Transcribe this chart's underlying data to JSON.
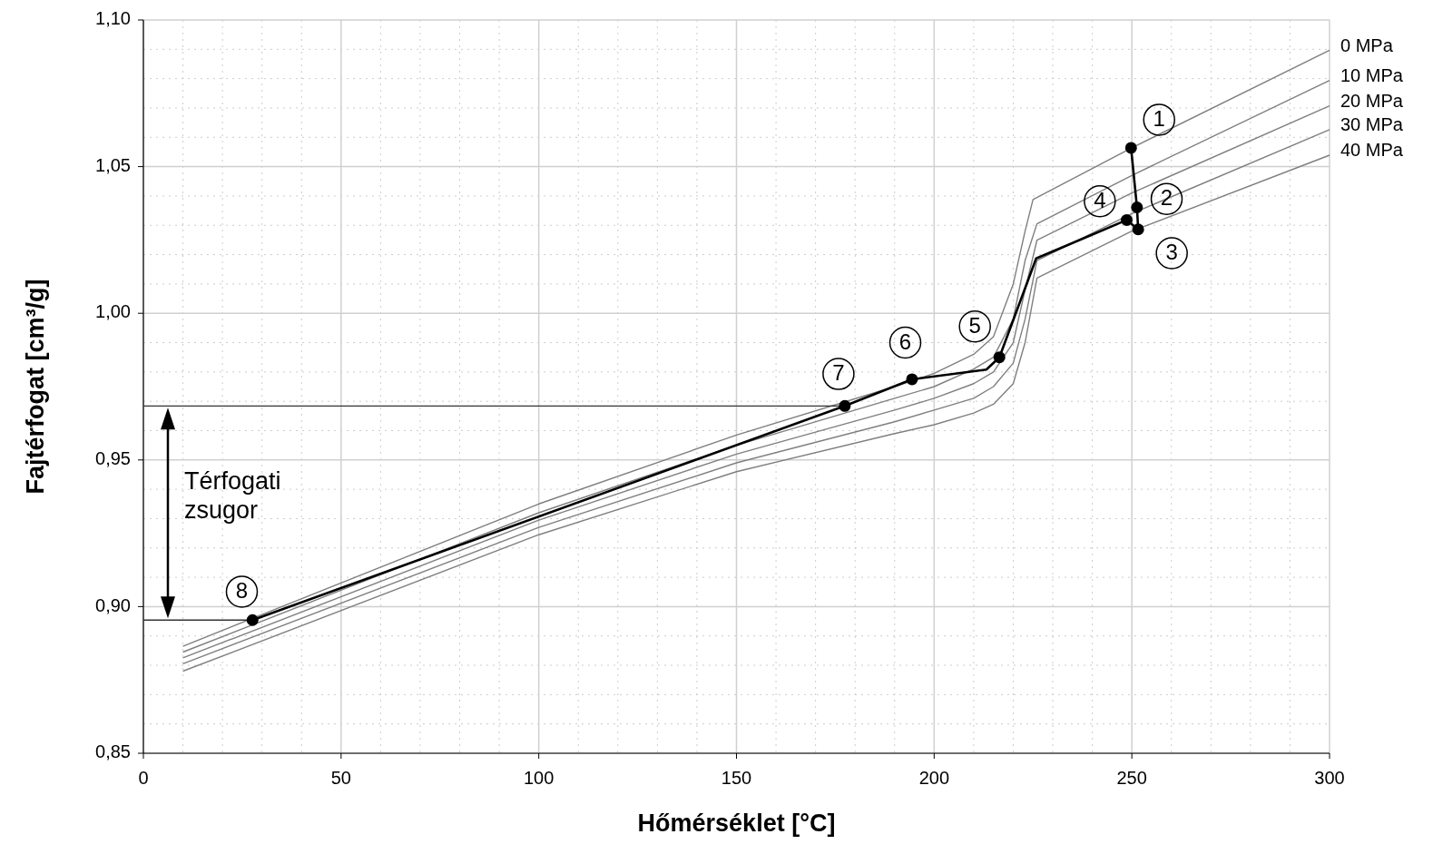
{
  "chart_data": {
    "type": "line",
    "xlabel": "Hőmérséklet [°C]",
    "ylabel": "Fajtérfogat [cm³/g]",
    "xlim": [
      0,
      300
    ],
    "xticks": [
      0,
      50,
      100,
      150,
      200,
      250,
      300
    ],
    "ylim": [
      0.85,
      1.1
    ],
    "yticks": [
      {
        "value": 0.85,
        "label": "0,85"
      },
      {
        "value": 0.9,
        "label": "0,90"
      },
      {
        "value": 0.95,
        "label": "0,95"
      },
      {
        "value": 1.0,
        "label": "1,00"
      },
      {
        "value": 1.05,
        "label": "1,05"
      },
      {
        "value": 1.1,
        "label": "1,10"
      }
    ],
    "grid": true,
    "line_style": "solid",
    "series": [
      {
        "name": "0 MPa",
        "color": "#7f7f7f",
        "x": [
          10,
          100,
          150,
          190,
          200,
          210,
          215,
          220,
          223,
          225,
          250,
          300
        ],
        "values": [
          0.8865,
          0.935,
          0.9585,
          0.975,
          0.9795,
          0.986,
          0.992,
          1.01,
          1.028,
          1.0388,
          1.0564,
          1.0897
        ]
      },
      {
        "name": "10 MPa",
        "color": "#7f7f7f",
        "x": [
          10,
          100,
          150,
          190,
          200,
          210,
          215,
          220,
          223,
          226,
          250,
          300
        ],
        "values": [
          0.8845,
          0.932,
          0.955,
          0.971,
          0.975,
          0.981,
          0.985,
          0.998,
          1.018,
          1.0305,
          1.047,
          1.0794
        ]
      },
      {
        "name": "20 MPa",
        "color": "#7f7f7f",
        "x": [
          10,
          100,
          150,
          190,
          200,
          210,
          215,
          220,
          223,
          226,
          250,
          300
        ],
        "values": [
          0.8825,
          0.9295,
          0.952,
          0.967,
          0.971,
          0.976,
          0.98,
          0.99,
          1.008,
          1.0249,
          1.041,
          1.0707
        ]
      },
      {
        "name": "30 MPa",
        "color": "#7f7f7f",
        "x": [
          10,
          100,
          150,
          190,
          200,
          210,
          215,
          220,
          223,
          226,
          250,
          300
        ],
        "values": [
          0.8805,
          0.927,
          0.949,
          0.963,
          0.967,
          0.971,
          0.975,
          0.983,
          0.998,
          1.018,
          1.034,
          1.0626
        ]
      },
      {
        "name": "40 MPa",
        "color": "#7f7f7f",
        "x": [
          10,
          100,
          150,
          190,
          200,
          210,
          215,
          220,
          223,
          226,
          250,
          300
        ],
        "values": [
          0.878,
          0.9245,
          0.946,
          0.959,
          0.962,
          0.966,
          0.969,
          0.976,
          0.99,
          1.012,
          1.028,
          1.0539
        ]
      },
      {
        "color": "#000000",
        "x": [
          249.8,
          251.3,
          251.6,
          248.7,
          225.8,
          216.5,
          213.2,
          194.4,
          177.4,
          27.6
        ],
        "values": [
          1.0564,
          1.0361,
          1.0286,
          1.0318,
          1.0187,
          0.985,
          0.9808,
          0.9775,
          0.9684,
          0.8954
        ]
      },
      {
        "color": "#333333",
        "x": [
          0,
          177.4
        ],
        "values": [
          0.9684,
          0.9684
        ]
      },
      {
        "color": "#333333",
        "x": [
          0,
          27.6
        ],
        "values": [
          0.8954,
          0.8954
        ]
      },
      {
        "type": "scatter",
        "marker": "circle",
        "color": "#000000",
        "x": [
          249.8,
          251.3,
          251.6,
          248.7,
          216.5,
          194.4,
          177.4,
          27.6
        ],
        "values": [
          1.0564,
          1.0361,
          1.0286,
          1.0318,
          0.985,
          0.9775,
          0.9684,
          0.8954
        ]
      }
    ],
    "annotations": [
      {
        "text": "1",
        "x": 256.9,
        "y": 1.066
      },
      {
        "text": "2",
        "x": 258.8,
        "y": 1.039
      },
      {
        "text": "3",
        "x": 260.1,
        "y": 1.0205
      },
      {
        "text": "4",
        "x": 241.9,
        "y": 1.0382
      },
      {
        "text": "5",
        "x": 210.3,
        "y": 0.9955
      },
      {
        "text": "6",
        "x": 192.7,
        "y": 0.99
      },
      {
        "text": "7",
        "x": 175.8,
        "y": 0.9793
      },
      {
        "text": "8",
        "x": 24.9,
        "y": 0.9051
      },
      "Térfogati zsugor"
    ]
  }
}
